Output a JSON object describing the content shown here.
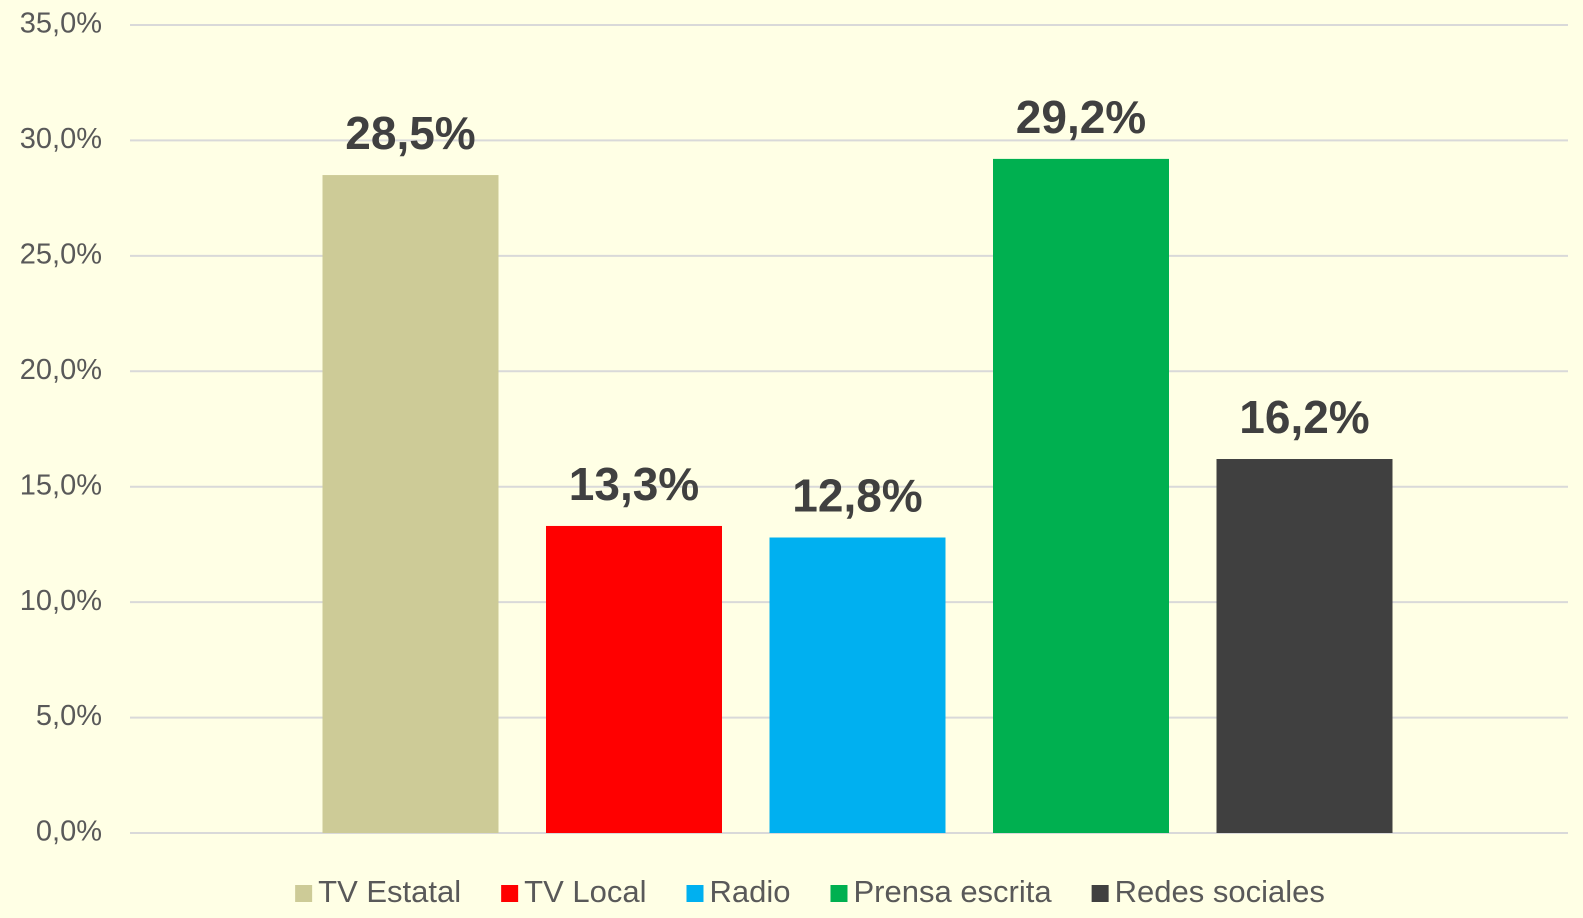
{
  "chart_data": {
    "type": "bar",
    "series": [
      {
        "name": "TV Estatal",
        "color": "#cdcb97",
        "values": [
          28.5
        ],
        "value_labels": [
          "28,5%"
        ]
      },
      {
        "name": "TV Local",
        "color": "#ff0000",
        "values": [
          13.3
        ],
        "value_labels": [
          "13,3%"
        ]
      },
      {
        "name": "Radio",
        "color": "#00b0f0",
        "values": [
          12.8
        ],
        "value_labels": [
          "12,8%"
        ]
      },
      {
        "name": "Prensa escrita",
        "color": "#00b050",
        "values": [
          29.2
        ],
        "value_labels": [
          "29,2%"
        ]
      },
      {
        "name": "Redes sociales",
        "color": "#404040",
        "values": [
          16.2
        ],
        "value_labels": [
          "16,2%"
        ]
      }
    ],
    "ylim": [
      0,
      35
    ],
    "yticks": [
      {
        "value": 0,
        "label": "0,0%"
      },
      {
        "value": 5,
        "label": "5,0%"
      },
      {
        "value": 10,
        "label": "10,0%"
      },
      {
        "value": 15,
        "label": "15,0%"
      },
      {
        "value": 20,
        "label": "20,0%"
      },
      {
        "value": 25,
        "label": "25,0%"
      },
      {
        "value": 30,
        "label": "30,0%"
      },
      {
        "value": 35,
        "label": "35,0%"
      }
    ],
    "grid": true,
    "legend": "bottom"
  }
}
